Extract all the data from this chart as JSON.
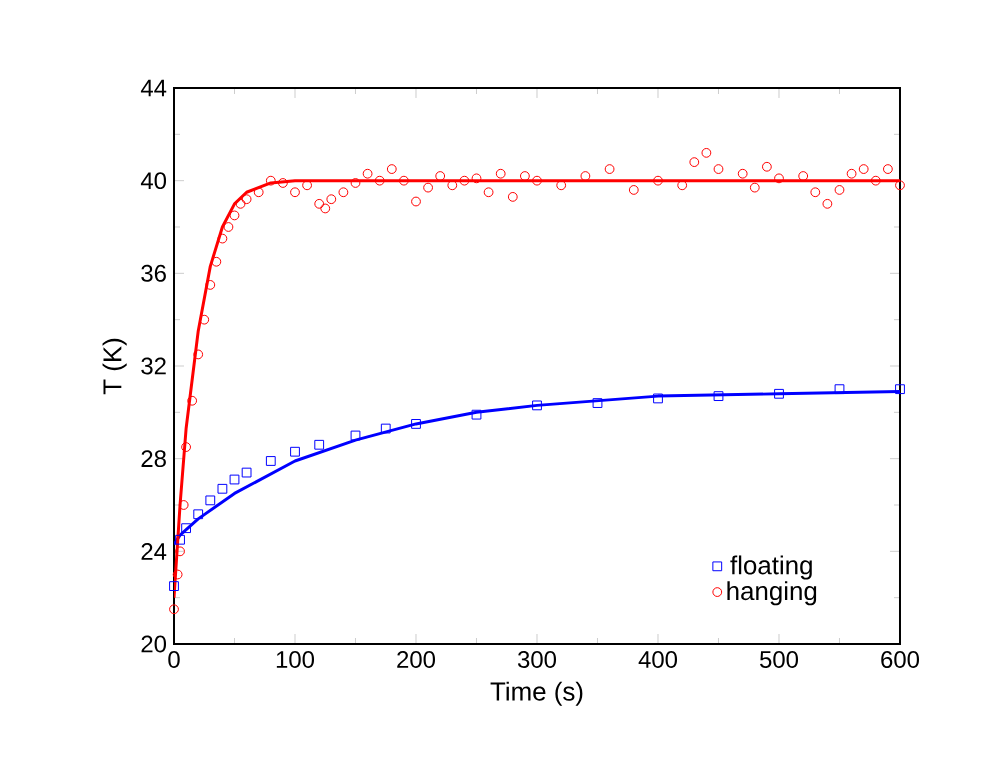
{
  "chart_data": {
    "type": "scatter",
    "xlabel": "Time (s)",
    "ylabel": "T (K)",
    "xlim": [
      0,
      600
    ],
    "ylim": [
      20,
      44
    ],
    "xticks": [
      0,
      100,
      200,
      300,
      400,
      500,
      600
    ],
    "yticks": [
      20,
      24,
      28,
      32,
      36,
      40,
      44
    ],
    "legend": "bottom right",
    "series": [
      {
        "name": "floating",
        "marker": "square",
        "color": "#0000ff",
        "x": [
          0,
          5,
          10,
          20,
          30,
          40,
          50,
          60,
          80,
          100,
          120,
          150,
          175,
          200,
          250,
          300,
          350,
          400,
          450,
          500,
          550,
          600
        ],
        "values": [
          22.5,
          24.5,
          25,
          25.6,
          26.2,
          26.7,
          27.1,
          27.4,
          27.9,
          28.3,
          28.6,
          29.0,
          29.3,
          29.5,
          29.9,
          30.3,
          30.4,
          30.6,
          30.7,
          30.8,
          31.0,
          31.0
        ]
      },
      {
        "name": "hanging",
        "marker": "circle",
        "color": "#ff0000",
        "x": [
          0,
          3,
          5,
          8,
          10,
          15,
          20,
          25,
          30,
          35,
          40,
          45,
          50,
          55,
          60,
          70,
          80,
          90,
          100,
          110,
          120,
          125,
          130,
          140,
          150,
          160,
          170,
          180,
          190,
          200,
          210,
          220,
          230,
          240,
          250,
          260,
          270,
          280,
          290,
          300,
          320,
          340,
          360,
          380,
          400,
          420,
          430,
          440,
          450,
          470,
          480,
          490,
          500,
          520,
          530,
          540,
          550,
          560,
          570,
          580,
          590,
          600
        ],
        "values": [
          21.5,
          23,
          24,
          26,
          28.5,
          30.5,
          32.5,
          34,
          35.5,
          36.5,
          37.5,
          38,
          38.5,
          39,
          39.2,
          39.5,
          40,
          39.9,
          39.5,
          39.8,
          39,
          38.8,
          39.2,
          39.5,
          39.9,
          40.3,
          40,
          40.5,
          40,
          39.1,
          39.7,
          40.2,
          39.8,
          40,
          40.1,
          39.5,
          40.3,
          39.3,
          40.2,
          40,
          39.8,
          40.2,
          40.5,
          39.6,
          40,
          39.8,
          40.8,
          41.2,
          40.5,
          40.3,
          39.7,
          40.6,
          40.1,
          40.2,
          39.5,
          39,
          39.6,
          40.3,
          40.5,
          40,
          40.5,
          39.8
        ]
      },
      {
        "type": "line",
        "marker": "none",
        "color": "#0000ff",
        "x": [
          0,
          5,
          20,
          50,
          100,
          150,
          200,
          250,
          300,
          400,
          500,
          600
        ],
        "values": [
          24.3,
          24.7,
          25.4,
          26.5,
          27.9,
          28.8,
          29.5,
          30.0,
          30.3,
          30.7,
          30.8,
          30.9
        ]
      },
      {
        "type": "line",
        "marker": "none",
        "color": "#ff0000",
        "x": [
          0,
          5,
          10,
          20,
          30,
          40,
          50,
          60,
          80,
          100,
          600
        ],
        "values": [
          22,
          26,
          29.3,
          33.5,
          36.3,
          38,
          39,
          39.5,
          39.9,
          40,
          40
        ]
      }
    ]
  }
}
